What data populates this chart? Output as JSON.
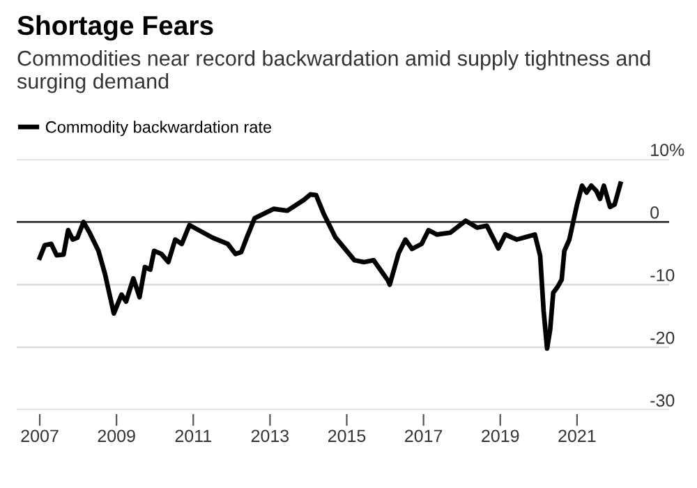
{
  "chart_data": {
    "type": "line",
    "title": "Shortage Fears",
    "subtitle": "Commodities near record backwardation amid supply tightness and surging demand",
    "x": [
      2007.0,
      2007.13,
      2007.3,
      2007.44,
      2007.62,
      2007.74,
      2007.86,
      2007.98,
      2008.14,
      2008.29,
      2008.53,
      2008.7,
      2008.93,
      2009.13,
      2009.25,
      2009.44,
      2009.6,
      2009.74,
      2009.88,
      2009.98,
      2010.17,
      2010.35,
      2010.53,
      2010.7,
      2010.9,
      2011.5,
      2011.9,
      2012.1,
      2012.25,
      2012.4,
      2012.6,
      2013.1,
      2013.45,
      2013.9,
      2014.05,
      2014.2,
      2014.4,
      2014.7,
      2015.2,
      2015.45,
      2015.7,
      2016.08,
      2016.12,
      2016.35,
      2016.53,
      2016.7,
      2016.95,
      2017.13,
      2017.35,
      2017.7,
      2018.1,
      2018.4,
      2018.65,
      2018.95,
      2019.13,
      2019.43,
      2019.67,
      2019.9,
      2020.04,
      2020.13,
      2020.22,
      2020.3,
      2020.38,
      2020.5,
      2020.6,
      2020.67,
      2020.8,
      2021.0,
      2021.13,
      2021.25,
      2021.37,
      2021.5,
      2021.6,
      2021.7,
      2021.86,
      2021.98,
      2022.13
    ],
    "series": [
      {
        "name": "Commodity backwardation rate",
        "color": "#000000",
        "values": [
          -5.7,
          -3.7,
          -3.5,
          -5.3,
          -5.2,
          -1.3,
          -2.8,
          -2.5,
          0,
          -1.6,
          -4.6,
          -8.3,
          -14.6,
          -11.6,
          -12.7,
          -9.0,
          -12.0,
          -7.2,
          -7.6,
          -4.6,
          -5.1,
          -6.4,
          -2.8,
          -3.5,
          -0.5,
          -2.5,
          -3.5,
          -5.1,
          -4.8,
          -2.4,
          0.6,
          2.1,
          1.8,
          3.6,
          4.4,
          4.3,
          1.3,
          -2.4,
          -6.1,
          -6.4,
          -6.1,
          -9.4,
          -10.0,
          -5.0,
          -2.8,
          -4.3,
          -3.5,
          -1.3,
          -2.0,
          -1.7,
          0.2,
          -0.9,
          -0.6,
          -4.2,
          -2.0,
          -2.8,
          -2.4,
          -2.0,
          -5.4,
          -14.2,
          -20.2,
          -17.2,
          -11.3,
          -10.3,
          -9.2,
          -4.6,
          -2.8,
          2.8,
          5.8,
          4.7,
          5.8,
          5.0,
          3.7,
          5.8,
          2.4,
          2.8,
          6.1
        ]
      }
    ],
    "xlim": [
      2006.4,
      2023.4
    ],
    "xticks": [
      2007,
      2009,
      2011,
      2013,
      2015,
      2017,
      2019,
      2021
    ],
    "ylim": [
      -30,
      10
    ],
    "yticks": [
      {
        "value": 10,
        "label": "10%"
      },
      0,
      -10,
      -20,
      -30
    ],
    "ref_lines": [
      {
        "axis": "y",
        "value": 0,
        "color": "#333333"
      }
    ],
    "grid": "y",
    "legend": "top left",
    "marker": "none",
    "line_style": "solid"
  }
}
